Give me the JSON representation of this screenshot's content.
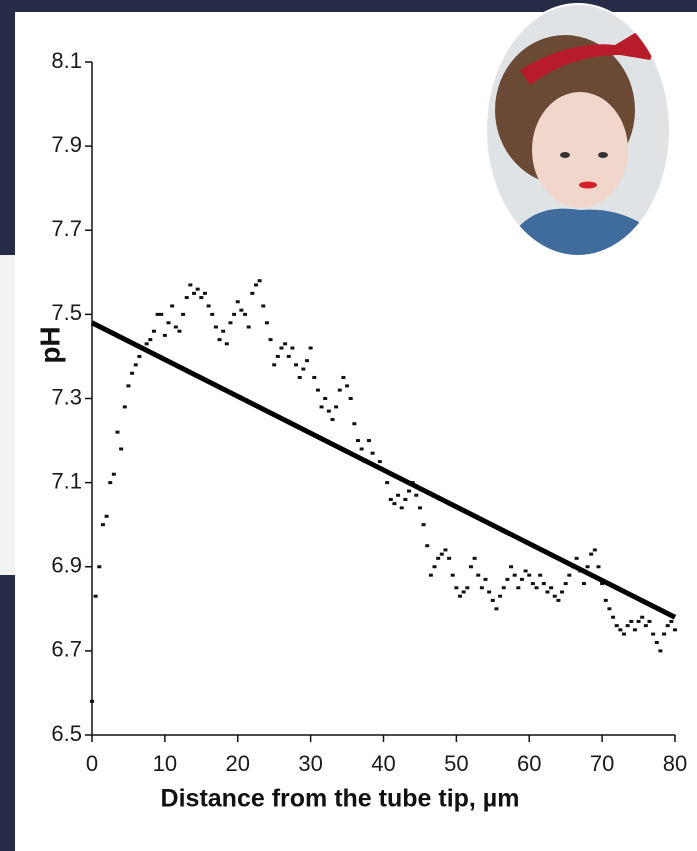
{
  "chart_data": {
    "type": "scatter",
    "x_label": "Distance from the tube tip, µm",
    "y_label": "pH",
    "color": "#111111",
    "x": [
      0,
      0.5,
      1,
      1.5,
      2,
      2.5,
      3,
      3.5,
      4,
      4.5,
      5,
      5.5,
      6,
      6.5,
      7,
      7.5,
      8,
      8.5,
      9,
      9.5,
      10,
      10.5,
      11,
      11.5,
      12,
      12.5,
      13,
      13.5,
      14,
      14.5,
      15,
      15.5,
      16,
      16.5,
      17,
      17.5,
      18,
      18.5,
      19,
      19.5,
      20,
      20.5,
      21,
      21.5,
      22,
      22.5,
      23,
      23.5,
      24,
      24.5,
      25,
      25.5,
      26,
      26.5,
      27,
      27.5,
      28,
      28.5,
      29,
      29.5,
      30,
      30.5,
      31,
      31.5,
      32,
      32.5,
      33,
      33.5,
      34,
      34.5,
      35,
      35.5,
      36,
      36.5,
      37,
      37.5,
      38,
      38.5,
      39,
      39.5,
      40,
      40.5,
      41,
      41.5,
      42,
      42.5,
      43,
      43.5,
      44,
      44.5,
      45,
      45.5,
      46,
      46.5,
      47,
      47.5,
      48,
      48.5,
      49,
      49.5,
      50,
      50.5,
      51,
      51.5,
      52,
      52.5,
      53,
      53.5,
      54,
      54.5,
      55,
      55.5,
      56,
      56.5,
      57,
      57.5,
      58,
      58.5,
      59,
      59.5,
      60,
      60.5,
      61,
      61.5,
      62,
      62.5,
      63,
      63.5,
      64,
      64.5,
      65,
      65.5,
      66,
      66.5,
      67,
      67.5,
      68,
      68.5,
      69,
      69.5,
      70,
      70.5,
      71,
      71.5,
      72,
      72.5,
      73,
      73.5,
      74,
      74.5,
      75,
      75.5,
      76,
      76.5,
      77,
      77.5,
      78,
      78.5,
      79,
      79.5,
      80
    ],
    "values": [
      6.58,
      6.83,
      6.9,
      7.0,
      7.02,
      7.1,
      7.12,
      7.22,
      7.18,
      7.28,
      7.33,
      7.36,
      7.38,
      7.4,
      7.42,
      7.43,
      7.44,
      7.46,
      7.5,
      7.5,
      7.45,
      7.48,
      7.52,
      7.47,
      7.46,
      7.5,
      7.54,
      7.57,
      7.55,
      7.56,
      7.54,
      7.55,
      7.52,
      7.5,
      7.47,
      7.44,
      7.46,
      7.43,
      7.48,
      7.5,
      7.53,
      7.51,
      7.5,
      7.47,
      7.55,
      7.57,
      7.58,
      7.52,
      7.48,
      7.44,
      7.38,
      7.4,
      7.42,
      7.43,
      7.4,
      7.42,
      7.38,
      7.35,
      7.37,
      7.39,
      7.42,
      7.35,
      7.32,
      7.28,
      7.3,
      7.27,
      7.25,
      7.28,
      7.32,
      7.35,
      7.33,
      7.3,
      7.24,
      7.2,
      7.18,
      7.15,
      7.2,
      7.17,
      7.14,
      7.15,
      7.13,
      7.1,
      7.06,
      7.05,
      7.07,
      7.04,
      7.06,
      7.08,
      7.1,
      7.07,
      7.04,
      7.0,
      6.95,
      6.88,
      6.9,
      6.92,
      6.93,
      6.94,
      6.92,
      6.88,
      6.85,
      6.83,
      6.84,
      6.85,
      6.9,
      6.92,
      6.88,
      6.85,
      6.87,
      6.84,
      6.82,
      6.8,
      6.83,
      6.85,
      6.87,
      6.9,
      6.88,
      6.85,
      6.87,
      6.89,
      6.88,
      6.86,
      6.85,
      6.88,
      6.86,
      6.84,
      6.85,
      6.83,
      6.82,
      6.84,
      6.86,
      6.88,
      6.9,
      6.92,
      6.89,
      6.86,
      6.9,
      6.93,
      6.94,
      6.9,
      6.86,
      6.82,
      6.8,
      6.78,
      6.76,
      6.75,
      6.74,
      6.76,
      6.77,
      6.75,
      6.77,
      6.78,
      6.76,
      6.77,
      6.74,
      6.72,
      6.7,
      6.74,
      6.76,
      6.77,
      6.75
    ],
    "fit": {
      "x": [
        0,
        80
      ],
      "values": [
        7.48,
        6.78
      ]
    },
    "xlim": [
      0,
      80
    ],
    "xticks": [
      0,
      10,
      20,
      30,
      40,
      50,
      60,
      70,
      80
    ],
    "ylim": [
      6.5,
      8.1
    ],
    "yticks": [
      6.5,
      6.7,
      6.9,
      7.1,
      7.3,
      7.5,
      7.7,
      7.9,
      8.1
    ]
  }
}
